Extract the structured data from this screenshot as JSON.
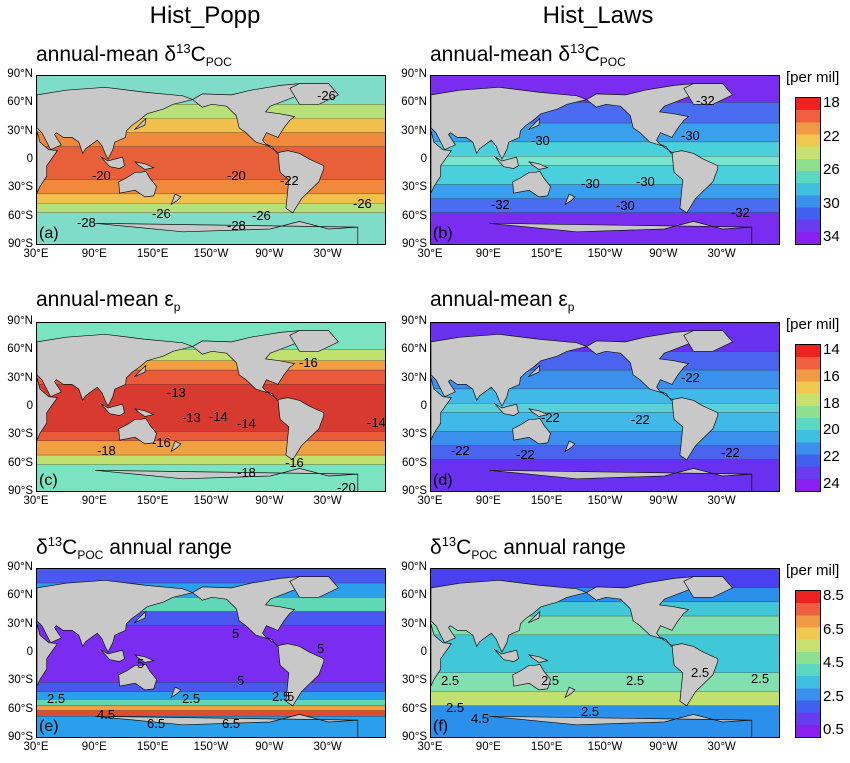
{
  "columns": [
    {
      "title": "Hist_Popp"
    },
    {
      "title": "Hist_Laws"
    }
  ],
  "lat_ticks": [
    "90°N",
    "60°N",
    "30°N",
    "0",
    "30°S",
    "60°S",
    "90°S"
  ],
  "lon_ticks": [
    "30°E",
    "90°E",
    "150°E",
    "150°W",
    "90°W",
    "30°W"
  ],
  "colorbar_unit": "[per mil]",
  "colorbars": [
    {
      "ticks": [
        "18",
        "22",
        "26",
        "30",
        "34"
      ]
    },
    {
      "ticks": [
        "14",
        "16",
        "18",
        "20",
        "22",
        "24"
      ]
    },
    {
      "ticks": [
        "8.5",
        "6.5",
        "4.5",
        "2.5",
        "0.5"
      ]
    }
  ],
  "panels": [
    {
      "letter": "(a)",
      "title_pre": "annual-mean δ",
      "title_sup": "13",
      "title_mid": "C",
      "title_sub": "POC",
      "contour_labels": [
        "-26",
        "-20",
        "-20",
        "-22",
        "-26",
        "-28",
        "-28",
        "-26",
        "-26"
      ]
    },
    {
      "letter": "(b)",
      "title_pre": "annual-mean δ",
      "title_sup": "13",
      "title_mid": "C",
      "title_sub": "POC",
      "contour_labels": [
        "-32",
        "-30",
        "-30",
        "-30",
        "-30",
        "-32",
        "-30",
        "-32"
      ]
    },
    {
      "letter": "(c)",
      "title_pre": "annual-mean ε",
      "title_sup": "",
      "title_mid": "",
      "title_sub": "p",
      "contour_labels": [
        "-13",
        "-16",
        "-13",
        "-14",
        "-14",
        "-18",
        "-16",
        "-18",
        "-16",
        "-14",
        "-20"
      ]
    },
    {
      "letter": "(d)",
      "title_pre": "annual-mean ε",
      "title_sup": "",
      "title_mid": "",
      "title_sub": "p",
      "contour_labels": [
        "-22",
        "-22",
        "-22",
        "-22",
        "-22",
        "-22"
      ]
    },
    {
      "letter": "(e)",
      "title_pre": "δ",
      "title_sup": "13",
      "title_mid": "C",
      "title_sub": "POC",
      "title_post": " annual range",
      "contour_labels": [
        "5",
        "5",
        "5",
        "5",
        "2.5",
        "2.5",
        "2.5",
        "4.5",
        "6.5",
        "6.5",
        "5"
      ]
    },
    {
      "letter": "(f)",
      "title_pre": "δ",
      "title_sup": "13",
      "title_mid": "C",
      "title_sub": "POC",
      "title_post": " annual range",
      "contour_labels": [
        "2.5",
        "2.5",
        "2.5",
        "2.5",
        "2.5",
        "2.5",
        "4.5",
        "2.5"
      ]
    }
  ],
  "colors": {
    "land": "#c8c8c8",
    "popp_dc": [
      "#7fdcc8",
      "#b8e07a",
      "#f0c04a",
      "#f08a3a",
      "#e8603a"
    ],
    "laws_dc": [
      "#7a2cf0",
      "#4a6cf0",
      "#3aa0ee",
      "#4ad0dc",
      "#7ae4d0"
    ],
    "popp_ep": [
      "#7ae4c0",
      "#c0e070",
      "#f0a040",
      "#e85a3a",
      "#d83a30"
    ],
    "laws_ep": [
      "#6a30f0",
      "#4a64f0",
      "#3a90ec",
      "#40b8e8",
      "#5ad0d8"
    ],
    "range_e": [
      "#7a2cf0",
      "#4a58f0",
      "#2aa0ec",
      "#60d8b8",
      "#f0a040",
      "#e04a30"
    ],
    "range_f": [
      "#4a40f0",
      "#2a90ec",
      "#40c8d8",
      "#80e0b0",
      "#c0e070"
    ],
    "cbar_dc": [
      "#ee2222",
      "#f06040",
      "#f09a46",
      "#f0c850",
      "#c8e070",
      "#8ee090",
      "#5ad8c0",
      "#40c0e0",
      "#3a90ec",
      "#4060f0",
      "#6a3cf0",
      "#8a20f0"
    ],
    "cbar_ep": [
      "#ee2222",
      "#f06040",
      "#f09a46",
      "#f0c850",
      "#c8e070",
      "#8ee090",
      "#5ad8c0",
      "#40c0e0",
      "#3a90ec",
      "#4060f0",
      "#6a3cf0",
      "#8a20f0"
    ],
    "cbar_rg": [
      "#ee2222",
      "#f06040",
      "#f09a46",
      "#f0c850",
      "#c8e070",
      "#8ee090",
      "#5ad8c0",
      "#40c0e0",
      "#3a90ec",
      "#4060f0",
      "#6a3cf0",
      "#8a20f0"
    ]
  }
}
